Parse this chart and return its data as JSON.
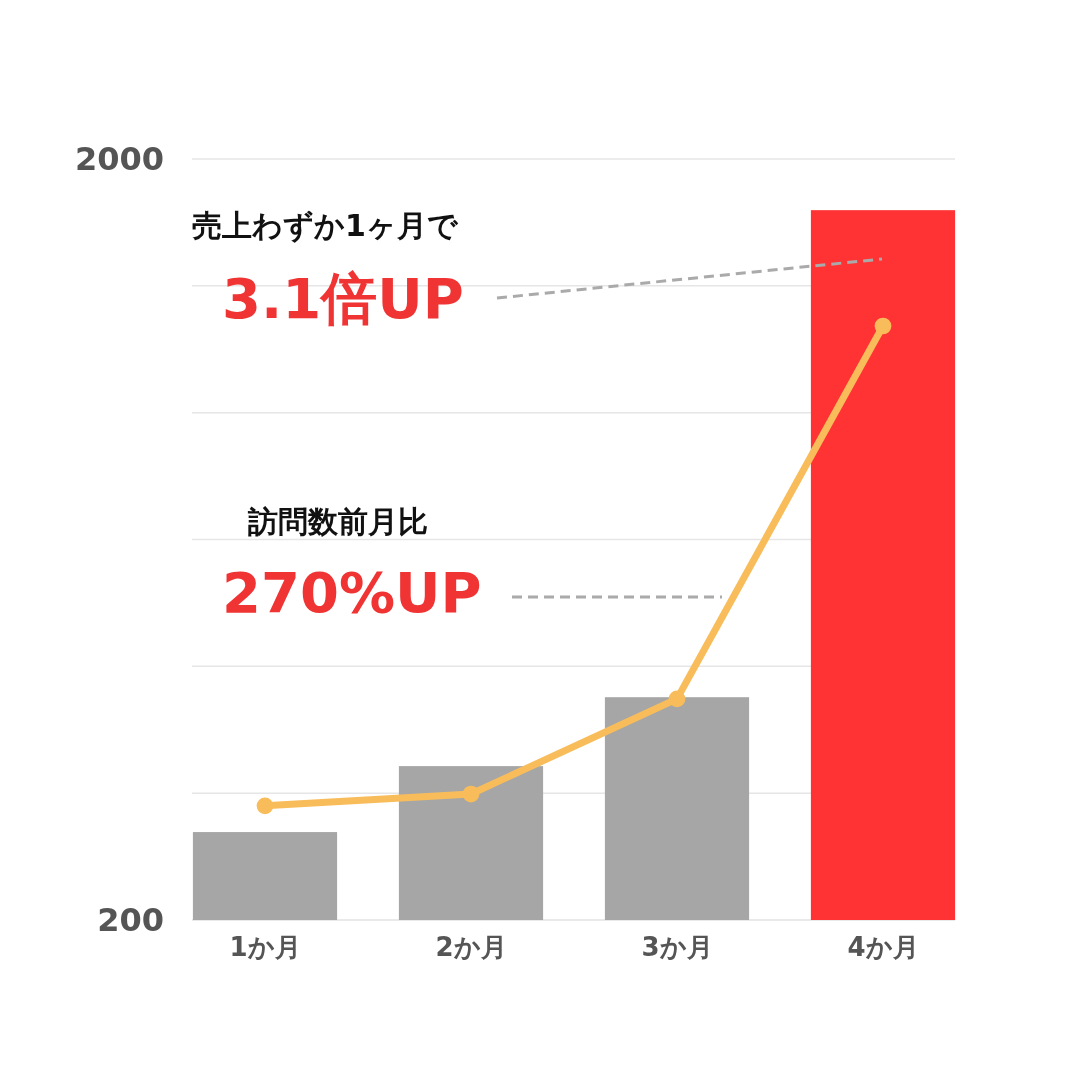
{
  "chart_data": {
    "type": "bar",
    "categories": [
      "1か月",
      "2か月",
      "3か月",
      "4か月"
    ],
    "series": [
      {
        "colors": [
          "#a6a6a6",
          "#a6a6a6",
          "#a6a6a6",
          "#ff3333"
        ],
        "values": [
          408,
          564,
          727,
          1879
        ]
      },
      {
        "type": "line",
        "color": "#f8bd5a",
        "values": [
          470,
          498,
          723,
          1605
        ]
      }
    ],
    "ylim": [
      200,
      2000
    ],
    "yticks": [
      200,
      {
        "value": 500,
        "label": null
      },
      {
        "value": 800,
        "label": null
      },
      {
        "value": 1100,
        "label": null
      },
      {
        "value": 1400,
        "label": null
      },
      {
        "value": 1700,
        "label": null
      },
      2000
    ],
    "grid": "y",
    "marker": "circle",
    "line_style": "solid",
    "annotations": [
      "売上わずか1ヶ月で",
      "3.1倍UP",
      "訪問数前月比",
      "270%UP"
    ]
  }
}
